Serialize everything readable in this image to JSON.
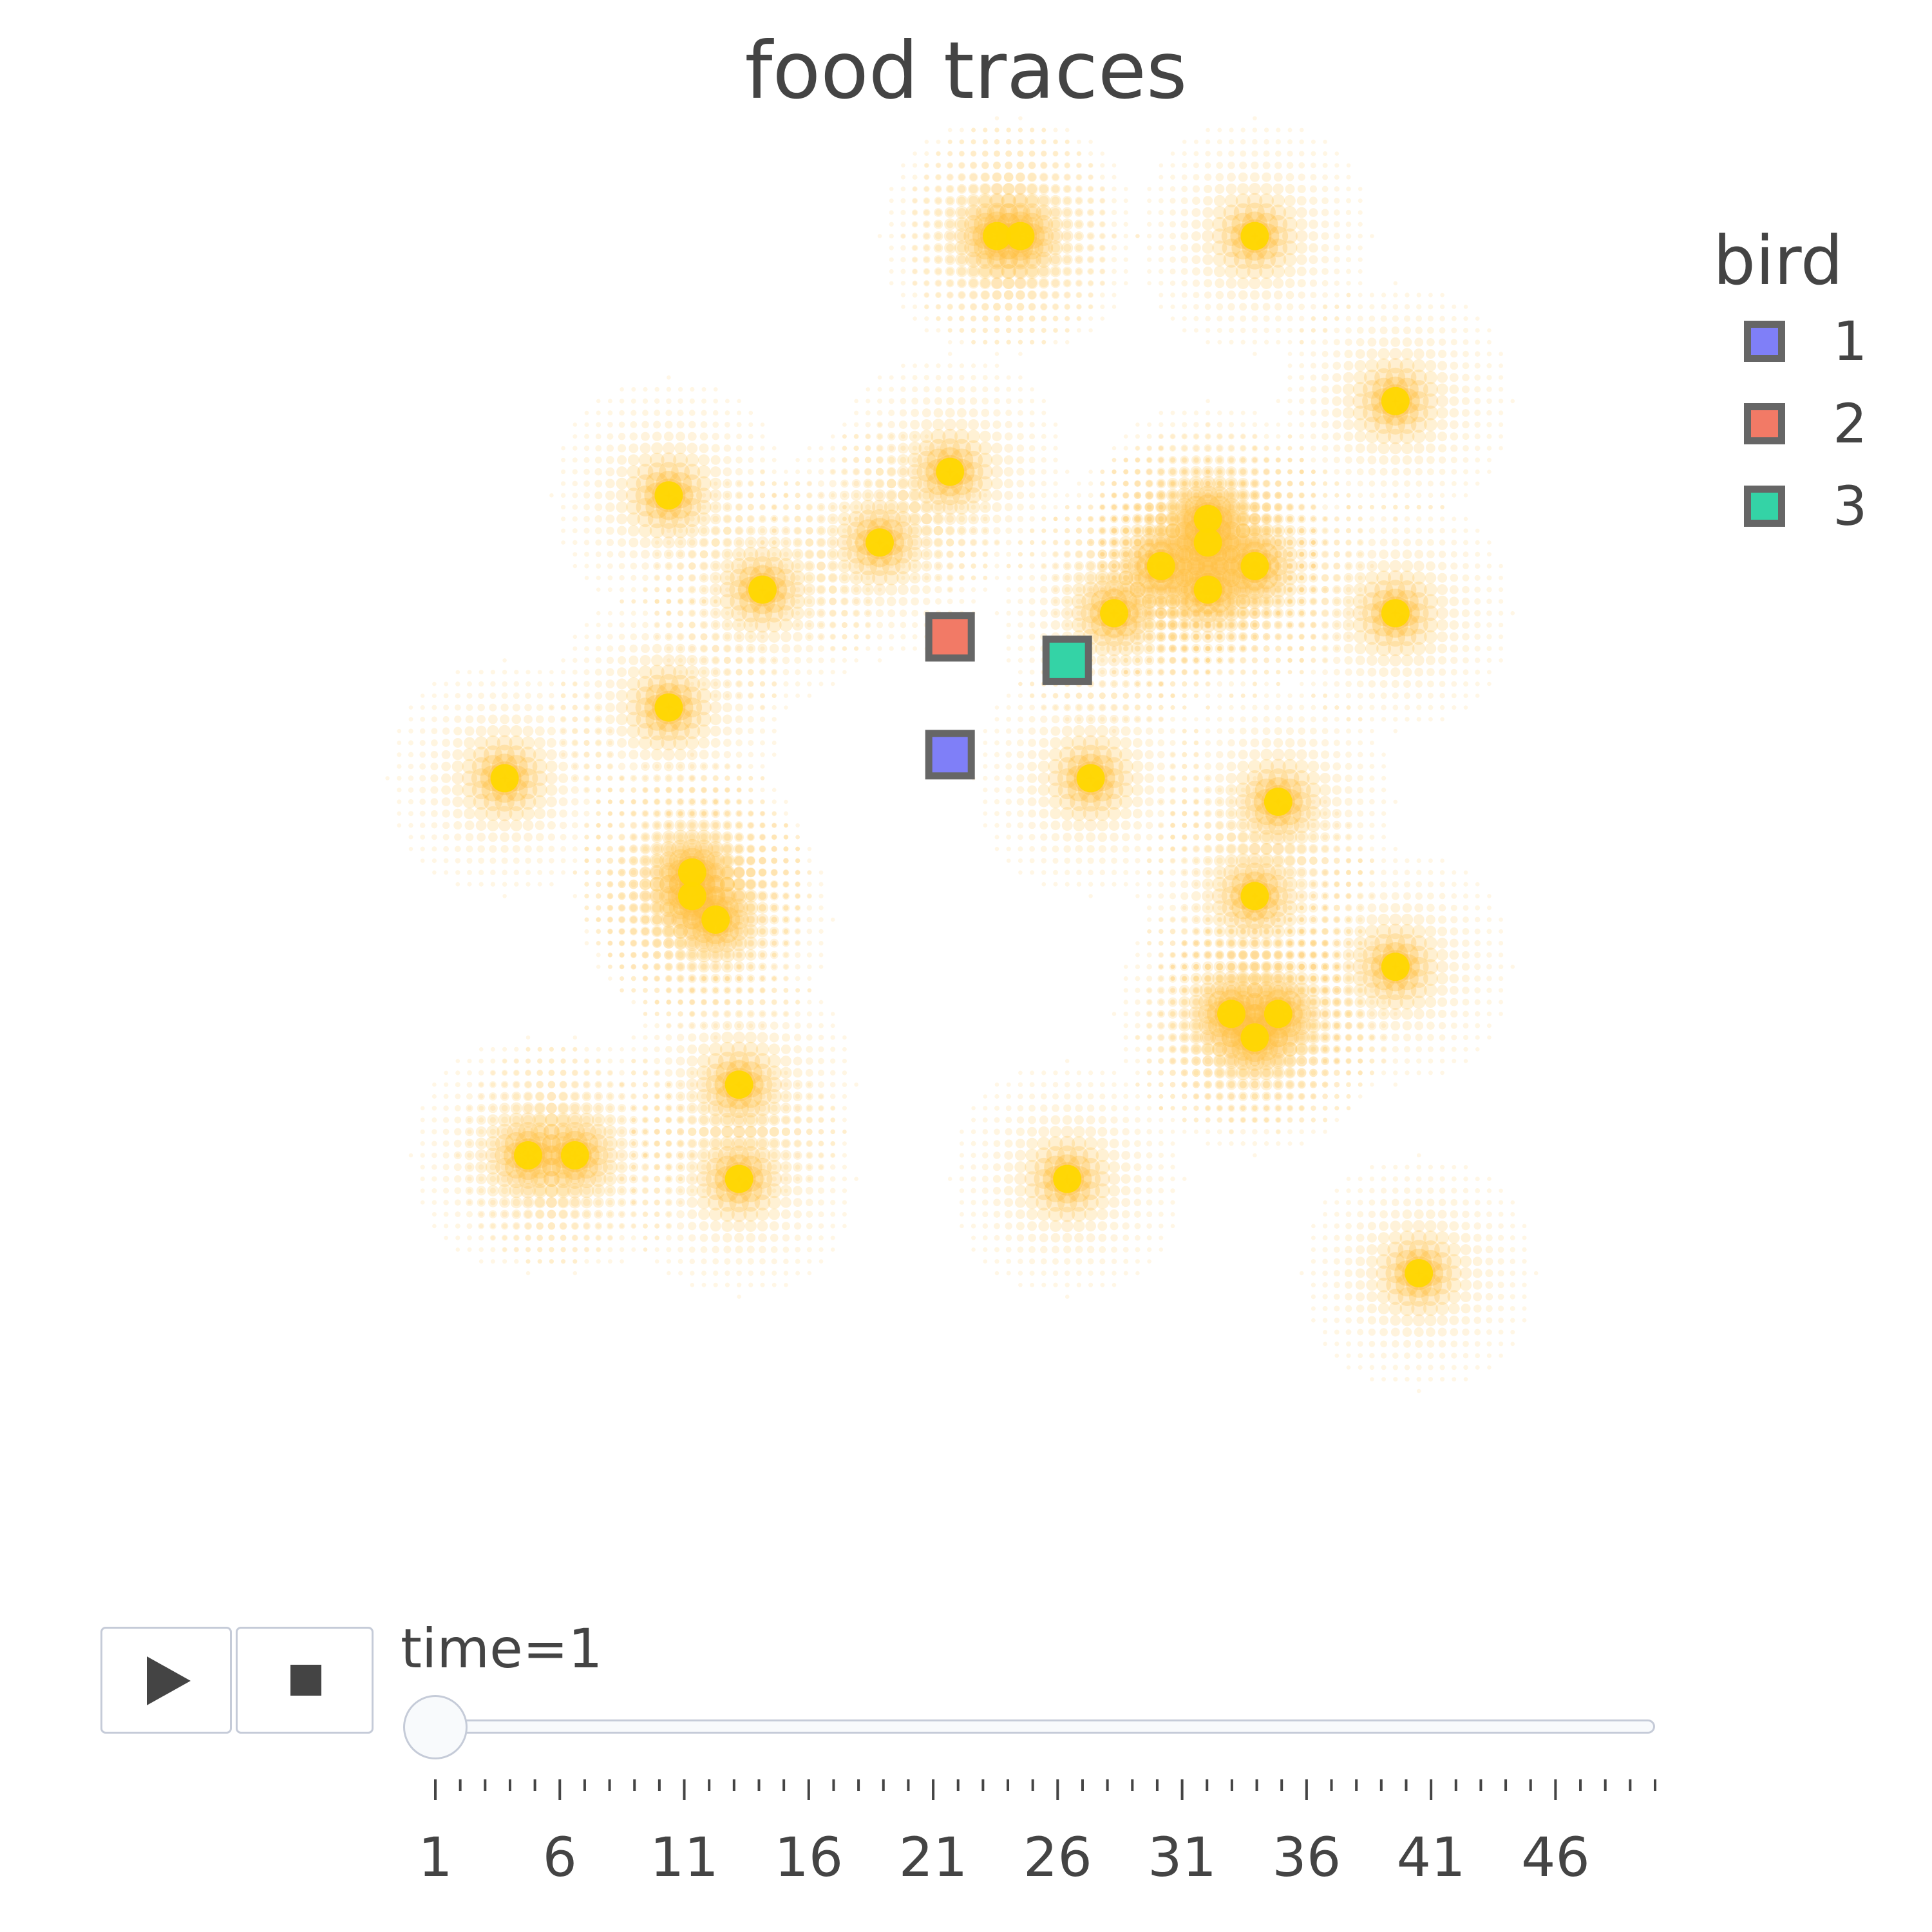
{
  "chart_data": {
    "type": "scatter",
    "title": "food traces",
    "legend": {
      "title": "bird",
      "placement": "right",
      "items": [
        {
          "name": "1",
          "color": "#7f7ff8"
        },
        {
          "name": "2",
          "color": "#f27a66"
        },
        {
          "name": "3",
          "color": "#34d3a6"
        }
      ]
    },
    "x_range": [
      0,
      50
    ],
    "y_range": [
      0,
      50
    ],
    "grid": false,
    "axes_visible": false,
    "food_color": "#ffd700",
    "trace_color": "#ffbf40",
    "food": [
      [
        4,
        26
      ],
      [
        5,
        10
      ],
      [
        7,
        10
      ],
      [
        11,
        29
      ],
      [
        11,
        38
      ],
      [
        12,
        21
      ],
      [
        12,
        22
      ],
      [
        14,
        13
      ],
      [
        14,
        9
      ],
      [
        13,
        20
      ],
      [
        15,
        34
      ],
      [
        20,
        36
      ],
      [
        23,
        39
      ],
      [
        25,
        49
      ],
      [
        26,
        49
      ],
      [
        29,
        26
      ],
      [
        28,
        9
      ],
      [
        30,
        33
      ],
      [
        34,
        37
      ],
      [
        32,
        35
      ],
      [
        34,
        34
      ],
      [
        36,
        35
      ],
      [
        34,
        36
      ],
      [
        36,
        49
      ],
      [
        37,
        25
      ],
      [
        36,
        21
      ],
      [
        35,
        16
      ],
      [
        36,
        15
      ],
      [
        37,
        16
      ],
      [
        42,
        33
      ],
      [
        42,
        42
      ],
      [
        42,
        18
      ],
      [
        43,
        5
      ]
    ],
    "birds": [
      {
        "name": "1",
        "x": 23,
        "y": 27
      },
      {
        "name": "2",
        "x": 23,
        "y": 32
      },
      {
        "name": "3",
        "x": 28,
        "y": 31
      }
    ]
  },
  "controls": {
    "play_label": "Play",
    "stop_label": "Stop"
  },
  "slider": {
    "prefix": "time=",
    "current_label": "time=1",
    "current_value": 1,
    "min": 1,
    "max": 50,
    "tick_labels": [
      "1",
      "6",
      "11",
      "16",
      "21",
      "26",
      "31",
      "36",
      "41",
      "46"
    ]
  }
}
